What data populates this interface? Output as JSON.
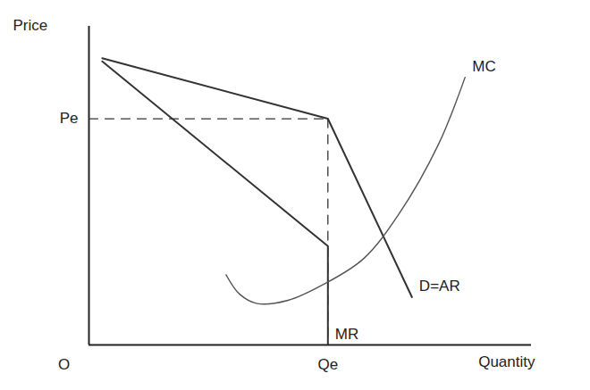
{
  "chart_data": {
    "type": "line",
    "x_label": "Quantity",
    "y_label": "Price",
    "origin_label": "O",
    "xlim": [
      0,
      100
    ],
    "ylim": [
      0,
      100
    ],
    "tick_labels": false,
    "grid": false,
    "series": [
      {
        "name": "D=AR",
        "color": "#333333",
        "x": [
          3,
          54,
          73
        ],
        "values": [
          90,
          71,
          15
        ]
      },
      {
        "name": "MR",
        "color": "#333333",
        "x": [
          3,
          54,
          54
        ],
        "values": [
          89,
          31,
          0
        ]
      },
      {
        "name": "MC",
        "color": "#555555",
        "x": [
          31,
          34,
          38,
          45,
          53,
          62,
          70,
          79,
          85
        ],
        "values": [
          22,
          16,
          13,
          14,
          19,
          27,
          41,
          63,
          84
        ]
      }
    ],
    "annotations": [
      {
        "text": "Pe",
        "y": 71,
        "x": 54
      },
      {
        "text": "Qe",
        "x": 54,
        "y": 71
      }
    ]
  }
}
